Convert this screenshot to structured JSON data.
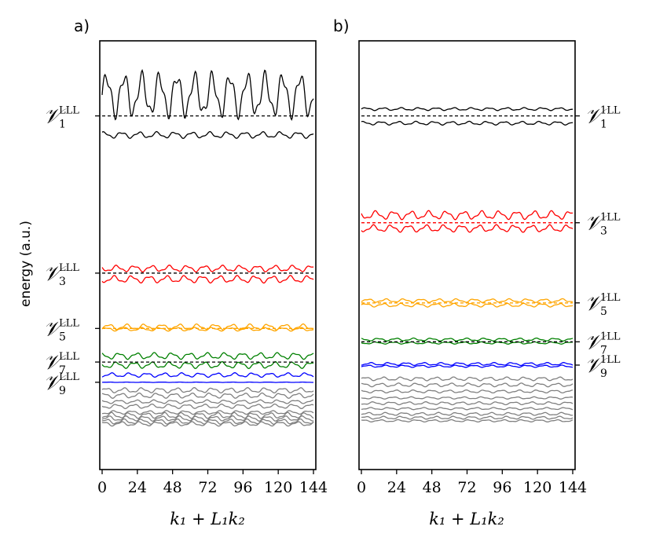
{
  "chart_data": [
    {
      "type": "line",
      "panel_label": "a)",
      "xlabel": "k₁ + L₁k₂",
      "ylabel": "energy (a.u.)",
      "xticks": [
        "0",
        "24",
        "48",
        "72",
        "96",
        "120",
        "144"
      ],
      "xlim": [
        0,
        144
      ],
      "ylim": [
        0,
        100
      ],
      "level_labels": [
        {
          "main": "𝒱",
          "sub": "1",
          "sup": "LLL",
          "y": 86.5
        },
        {
          "main": "𝒱",
          "sub": "3",
          "sup": "LLL",
          "y": 45.3
        },
        {
          "main": "𝒱",
          "sub": "5",
          "sup": "LLL",
          "y": 30.8
        },
        {
          "main": "𝒱",
          "sub": "7",
          "sup": "LLL",
          "y": 22.0
        },
        {
          "main": "𝒱",
          "sub": "9",
          "sup": "LLL",
          "y": 16.7
        }
      ],
      "series": [
        {
          "name": "V1 upper band",
          "color": "#000000",
          "base": 92.0,
          "amp": 6.5,
          "osc": 12,
          "style": "solid"
        },
        {
          "name": "V1 lower band",
          "color": "#000000",
          "base": 81.5,
          "amp": 0.9,
          "osc": 12,
          "style": "solid"
        },
        {
          "name": "V1 level",
          "color": "#000000",
          "base": 86.5,
          "amp": 0,
          "osc": 0,
          "style": "dashed"
        },
        {
          "name": "V3 upper band",
          "color": "#ff0000",
          "base": 46.5,
          "amp": 0.9,
          "osc": 12,
          "style": "solid"
        },
        {
          "name": "V3 lower band",
          "color": "#ff0000",
          "base": 43.7,
          "amp": 1.0,
          "osc": 12,
          "style": "solid"
        },
        {
          "name": "V3 level",
          "color": "#000000",
          "base": 45.3,
          "amp": 0,
          "osc": 0,
          "style": "dashed"
        },
        {
          "name": "V5 band a",
          "color": "#ffa500",
          "base": 31.2,
          "amp": 0.8,
          "osc": 12,
          "style": "solid"
        },
        {
          "name": "V5 band b",
          "color": "#ffa500",
          "base": 30.6,
          "amp": 0.5,
          "osc": 12,
          "style": "solid"
        },
        {
          "name": "V5 level",
          "color": "#ffa500",
          "base": 30.8,
          "amp": 0,
          "osc": 0,
          "style": "dashed"
        },
        {
          "name": "V7 upper band",
          "color": "#008000",
          "base": 23.6,
          "amp": 0.9,
          "osc": 12,
          "style": "solid"
        },
        {
          "name": "V7 lower band",
          "color": "#008000",
          "base": 21.2,
          "amp": 0.9,
          "osc": 12,
          "style": "solid"
        },
        {
          "name": "V7 level",
          "color": "#000000",
          "base": 22.0,
          "amp": 0,
          "osc": 0,
          "style": "dashed"
        },
        {
          "name": "V9 upper band",
          "color": "#0000ff",
          "base": 18.6,
          "amp": 0.6,
          "osc": 12,
          "style": "solid"
        },
        {
          "name": "V9 lower band",
          "color": "#0000ff",
          "base": 16.7,
          "amp": 0.05,
          "osc": 12,
          "style": "solid"
        },
        {
          "name": "higher bands 1",
          "color": "#808080",
          "base": 14.6,
          "amp": 0.7,
          "osc": 12,
          "style": "solid"
        },
        {
          "name": "higher bands 2",
          "color": "#808080",
          "base": 13.2,
          "amp": 0.7,
          "osc": 12,
          "style": "solid"
        },
        {
          "name": "higher bands 3",
          "color": "#808080",
          "base": 11.6,
          "amp": 0.5,
          "osc": 12,
          "style": "solid"
        },
        {
          "name": "higher bands 4",
          "color": "#808080",
          "base": 10.4,
          "amp": 0.6,
          "osc": 12,
          "style": "solid"
        },
        {
          "name": "higher bands 5",
          "color": "#808080",
          "base": 8.8,
          "amp": 0.5,
          "osc": 12,
          "style": "solid"
        },
        {
          "name": "higher bands 6",
          "color": "#808080",
          "base": 8.0,
          "amp": 0.8,
          "osc": 12,
          "style": "solid"
        },
        {
          "name": "higher bands 7",
          "color": "#808080",
          "base": 7.2,
          "amp": 0.7,
          "osc": 12,
          "style": "solid"
        },
        {
          "name": "higher bands 8",
          "color": "#808080",
          "base": 6.4,
          "amp": 0.7,
          "osc": 12,
          "style": "solid"
        },
        {
          "name": "higher bands 9",
          "color": "#808080",
          "base": 5.8,
          "amp": 0.6,
          "osc": 12,
          "style": "solid"
        }
      ]
    },
    {
      "type": "line",
      "panel_label": "b)",
      "xlabel": "k₁ + L₁k₂",
      "xticks": [
        "0",
        "24",
        "48",
        "72",
        "96",
        "120",
        "144"
      ],
      "xlim": [
        0,
        144
      ],
      "ylim": [
        0,
        100
      ],
      "level_labels": [
        {
          "main": "𝒱",
          "sub": "1",
          "sup": "1LL",
          "y": 86.5
        },
        {
          "main": "𝒱",
          "sub": "3",
          "sup": "1LL",
          "y": 58.5
        },
        {
          "main": "𝒱",
          "sub": "5",
          "sup": "1LL",
          "y": 37.5
        },
        {
          "main": "𝒱",
          "sub": "7",
          "sup": "1LL",
          "y": 27.3
        },
        {
          "main": "𝒱",
          "sub": "9",
          "sup": "1LL",
          "y": 21.2
        }
      ],
      "series": [
        {
          "name": "V1 upper band",
          "color": "#000000",
          "base": 88.3,
          "amp": 0.4,
          "osc": 12,
          "style": "solid"
        },
        {
          "name": "V1 lower band",
          "color": "#000000",
          "base": 84.6,
          "amp": 0.5,
          "osc": 12,
          "style": "solid"
        },
        {
          "name": "V1 level",
          "color": "#000000",
          "base": 86.5,
          "amp": 0,
          "osc": 0,
          "style": "dashed"
        },
        {
          "name": "V3 upper band",
          "color": "#ff0000",
          "base": 60.5,
          "amp": 1.2,
          "osc": 12,
          "style": "solid"
        },
        {
          "name": "V3 lower band",
          "color": "#ff0000",
          "base": 57.0,
          "amp": 1.0,
          "osc": 12,
          "style": "solid"
        },
        {
          "name": "V3 level",
          "color": "#ff0000",
          "base": 58.5,
          "amp": 0,
          "osc": 0,
          "style": "dashed"
        },
        {
          "name": "V5 upper band",
          "color": "#ffa500",
          "base": 38.1,
          "amp": 0.5,
          "osc": 12,
          "style": "solid"
        },
        {
          "name": "V5 lower band",
          "color": "#ffa500",
          "base": 36.9,
          "amp": 0.5,
          "osc": 12,
          "style": "solid"
        },
        {
          "name": "V5 level",
          "color": "#ffa500",
          "base": 37.5,
          "amp": 0,
          "osc": 0,
          "style": "dashed"
        },
        {
          "name": "V7 upper band",
          "color": "#008000",
          "base": 27.9,
          "amp": 0.4,
          "osc": 12,
          "style": "solid"
        },
        {
          "name": "V7 lower band",
          "color": "#008000",
          "base": 27.0,
          "amp": 0.3,
          "osc": 12,
          "style": "solid"
        },
        {
          "name": "V7 level",
          "color": "#000000",
          "base": 27.3,
          "amp": 0,
          "osc": 0,
          "style": "dashed"
        },
        {
          "name": "V9 upper band",
          "color": "#0000ff",
          "base": 21.5,
          "amp": 0.4,
          "osc": 12,
          "style": "solid"
        },
        {
          "name": "V9 lower band",
          "color": "#0000ff",
          "base": 20.9,
          "amp": 0.3,
          "osc": 12,
          "style": "solid"
        },
        {
          "name": "higher bands 1",
          "color": "#808080",
          "base": 17.6,
          "amp": 0.5,
          "osc": 12,
          "style": "solid"
        },
        {
          "name": "higher bands 2",
          "color": "#808080",
          "base": 16.0,
          "amp": 0.5,
          "osc": 12,
          "style": "solid"
        },
        {
          "name": "higher bands 3",
          "color": "#808080",
          "base": 14.3,
          "amp": 0.4,
          "osc": 12,
          "style": "solid"
        },
        {
          "name": "higher bands 4",
          "color": "#808080",
          "base": 12.6,
          "amp": 0.3,
          "osc": 12,
          "style": "solid"
        },
        {
          "name": "higher bands 5",
          "color": "#808080",
          "base": 11.2,
          "amp": 0.4,
          "osc": 12,
          "style": "solid"
        },
        {
          "name": "higher bands 6",
          "color": "#808080",
          "base": 9.8,
          "amp": 0.3,
          "osc": 12,
          "style": "solid"
        },
        {
          "name": "higher bands 7",
          "color": "#808080",
          "base": 8.4,
          "amp": 0.4,
          "osc": 12,
          "style": "solid"
        },
        {
          "name": "higher bands 8",
          "color": "#808080",
          "base": 7.4,
          "amp": 0.4,
          "osc": 12,
          "style": "solid"
        },
        {
          "name": "higher bands 9",
          "color": "#808080",
          "base": 6.6,
          "amp": 0.3,
          "osc": 12,
          "style": "solid"
        }
      ]
    }
  ]
}
